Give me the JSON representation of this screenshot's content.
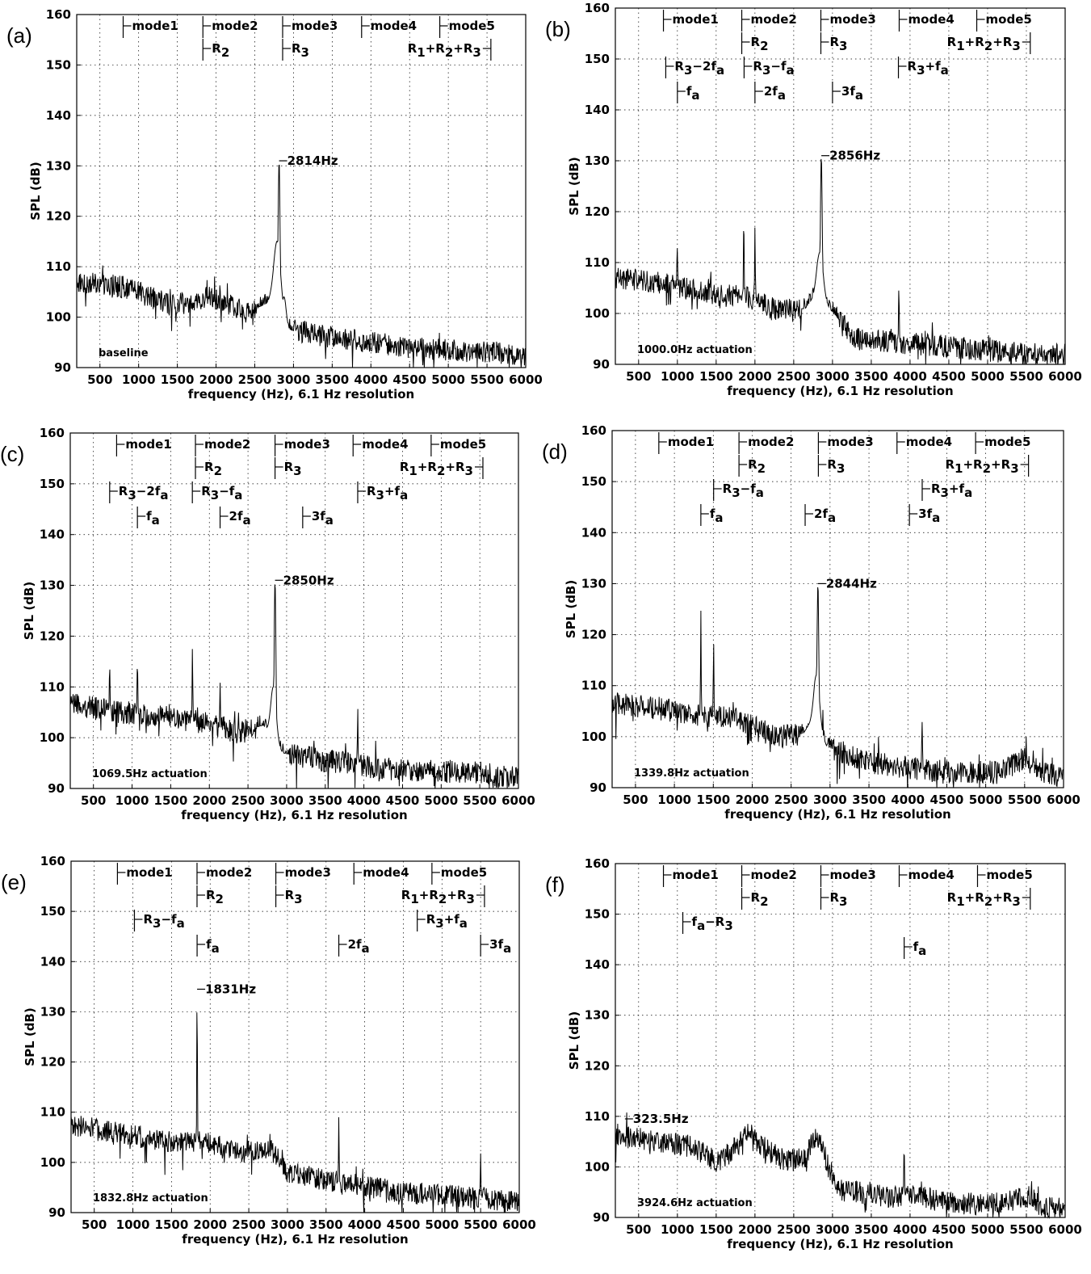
{
  "chart_data": [
    {
      "type": "line",
      "panel_label": "(a)",
      "xlabel": "frequency (Hz), 6.1 Hz resolution",
      "ylabel": "SPL (dB)",
      "xlim": [
        200,
        6000
      ],
      "ylim": [
        90,
        160
      ],
      "xticks": [
        500,
        1000,
        1500,
        2000,
        2500,
        3000,
        3500,
        4000,
        4500,
        5000,
        5500,
        6000
      ],
      "yticks": [
        90,
        100,
        110,
        120,
        130,
        140,
        150,
        160
      ],
      "grid": true,
      "condition": "baseline",
      "peak_label": "2814Hz",
      "peak": {
        "x": 2814,
        "y": 131
      },
      "annotations": [
        {
          "row": 1,
          "x": 800,
          "text": "mode1"
        },
        {
          "row": 1,
          "x": 1830,
          "text": "mode2"
        },
        {
          "row": 1,
          "x": 2860,
          "text": "mode3"
        },
        {
          "row": 1,
          "x": 3880,
          "text": "mode4"
        },
        {
          "row": 1,
          "x": 4890,
          "text": "mode5"
        },
        {
          "row": 2,
          "x": 1830,
          "text": "R2"
        },
        {
          "row": 2,
          "x": 2860,
          "text": "R3"
        },
        {
          "row": 2,
          "x": 5550,
          "text": "R1+R2+R3",
          "side": "left"
        }
      ],
      "spectrum": {
        "base": [
          [
            200,
            107
          ],
          [
            800,
            106
          ],
          [
            1400,
            102.5
          ],
          [
            1700,
            103
          ],
          [
            1900,
            104
          ],
          [
            2400,
            101
          ],
          [
            2700,
            103
          ],
          [
            2950,
            97.5
          ],
          [
            3500,
            96
          ],
          [
            4500,
            94
          ],
          [
            5000,
            93.5
          ],
          [
            5600,
            93
          ],
          [
            6000,
            92
          ]
        ],
        "noise": 2.2,
        "peaks": [
          [
            2814,
            131,
            25
          ],
          [
            2790,
            115,
            90
          ],
          [
            2880,
            104,
            50
          ]
        ]
      }
    },
    {
      "type": "line",
      "panel_label": "(b)",
      "xlabel": "frequency (Hz), 6.1 Hz resolution",
      "ylabel": "SPL (dB)",
      "xlim": [
        200,
        6000
      ],
      "ylim": [
        90,
        160
      ],
      "xticks": [
        500,
        1000,
        1500,
        2000,
        2500,
        3000,
        3500,
        4000,
        4500,
        5000,
        5500,
        6000
      ],
      "yticks": [
        90,
        100,
        110,
        120,
        130,
        140,
        150,
        160
      ],
      "grid": true,
      "condition": "1000.0Hz actuation",
      "peak_label": "2856Hz",
      "peak": {
        "x": 2856,
        "y": 131
      },
      "annotations": [
        {
          "row": 1,
          "x": 820,
          "text": "mode1"
        },
        {
          "row": 1,
          "x": 1830,
          "text": "mode2"
        },
        {
          "row": 1,
          "x": 2850,
          "text": "mode3"
        },
        {
          "row": 1,
          "x": 3860,
          "text": "mode4"
        },
        {
          "row": 1,
          "x": 4860,
          "text": "mode5"
        },
        {
          "row": 2,
          "x": 1830,
          "text": "R2"
        },
        {
          "row": 2,
          "x": 2850,
          "text": "R3"
        },
        {
          "row": 2,
          "x": 5550,
          "text": "R1+R2+R3",
          "side": "left"
        },
        {
          "row": 3,
          "x": 850,
          "text": "R3−2fa"
        },
        {
          "row": 3,
          "x": 1860,
          "text": "R3−fa"
        },
        {
          "row": 3,
          "x": 3850,
          "text": "R3+fa"
        },
        {
          "row": 4,
          "x": 1000,
          "text": "fa"
        },
        {
          "row": 4,
          "x": 2000,
          "text": "2fa"
        },
        {
          "row": 4,
          "x": 3000,
          "text": "3fa"
        }
      ],
      "spectrum": {
        "base": [
          [
            200,
            107
          ],
          [
            800,
            106
          ],
          [
            1500,
            103.5
          ],
          [
            1850,
            103.5
          ],
          [
            2300,
            100.5
          ],
          [
            2650,
            101
          ],
          [
            2800,
            104
          ],
          [
            2960,
            101
          ],
          [
            3300,
            95
          ],
          [
            4500,
            93.5
          ],
          [
            5500,
            92
          ],
          [
            6000,
            92
          ]
        ],
        "noise": 2.2,
        "peaks": [
          [
            2856,
            131,
            22
          ],
          [
            2840,
            112,
            80
          ],
          [
            1856,
            120,
            8
          ],
          [
            2000,
            117,
            8
          ],
          [
            1000,
            113,
            8
          ],
          [
            3856,
            106,
            8
          ]
        ]
      }
    },
    {
      "type": "line",
      "panel_label": "(c)",
      "xlabel": "frequency (Hz), 6.1 Hz resolution",
      "ylabel": "SPL (dB)",
      "xlim": [
        200,
        6000
      ],
      "ylim": [
        90,
        160
      ],
      "xticks": [
        500,
        1000,
        1500,
        2000,
        2500,
        3000,
        3500,
        4000,
        4500,
        5000,
        5500,
        6000
      ],
      "yticks": [
        90,
        100,
        110,
        120,
        130,
        140,
        150,
        160
      ],
      "grid": true,
      "condition": "1069.5Hz actuation",
      "peak_label": "2850Hz",
      "peak": {
        "x": 2850,
        "y": 131
      },
      "annotations": [
        {
          "row": 1,
          "x": 800,
          "text": "mode1"
        },
        {
          "row": 1,
          "x": 1820,
          "text": "mode2"
        },
        {
          "row": 1,
          "x": 2850,
          "text": "mode3"
        },
        {
          "row": 1,
          "x": 3860,
          "text": "mode4"
        },
        {
          "row": 1,
          "x": 4870,
          "text": "mode5"
        },
        {
          "row": 2,
          "x": 1820,
          "text": "R2"
        },
        {
          "row": 2,
          "x": 2850,
          "text": "R3"
        },
        {
          "row": 2,
          "x": 5540,
          "text": "R1+R2+R3",
          "side": "left"
        },
        {
          "row": 3,
          "x": 710,
          "text": "R3−2fa"
        },
        {
          "row": 3,
          "x": 1780,
          "text": "R3−fa"
        },
        {
          "row": 3,
          "x": 3920,
          "text": "R3+fa"
        },
        {
          "row": 4,
          "x": 1069,
          "text": "fa"
        },
        {
          "row": 4,
          "x": 2139,
          "text": "2fa"
        },
        {
          "row": 4,
          "x": 3208,
          "text": "3fa"
        }
      ],
      "spectrum": {
        "base": [
          [
            200,
            106.5
          ],
          [
            900,
            105
          ],
          [
            1500,
            104
          ],
          [
            1900,
            103
          ],
          [
            2400,
            101
          ],
          [
            2700,
            102.5
          ],
          [
            2950,
            97
          ],
          [
            3500,
            95.5
          ],
          [
            4500,
            93.5
          ],
          [
            5500,
            93
          ],
          [
            6000,
            92
          ]
        ],
        "noise": 2.3,
        "peaks": [
          [
            2850,
            131,
            22
          ],
          [
            2830,
            110,
            70
          ],
          [
            1069,
            116,
            8
          ],
          [
            710,
            115,
            8
          ],
          [
            1781,
            118,
            8
          ],
          [
            2139,
            111,
            8
          ],
          [
            3920,
            106,
            8
          ]
        ]
      }
    },
    {
      "type": "line",
      "panel_label": "(d)",
      "xlabel": "frequency (Hz), 6.1 Hz resolution",
      "ylabel": "SPL (dB)",
      "xlim": [
        200,
        6000
      ],
      "ylim": [
        90,
        160
      ],
      "xticks": [
        500,
        1000,
        1500,
        2000,
        2500,
        3000,
        3500,
        4000,
        4500,
        5000,
        5500,
        6000
      ],
      "yticks": [
        90,
        100,
        110,
        120,
        130,
        140,
        150,
        160
      ],
      "grid": true,
      "condition": "1339.8Hz actuation",
      "peak_label": "2844Hz",
      "peak": {
        "x": 2844,
        "y": 130
      },
      "annotations": [
        {
          "row": 1,
          "x": 800,
          "text": "mode1"
        },
        {
          "row": 1,
          "x": 1830,
          "text": "mode2"
        },
        {
          "row": 1,
          "x": 2850,
          "text": "mode3"
        },
        {
          "row": 1,
          "x": 3860,
          "text": "mode4"
        },
        {
          "row": 1,
          "x": 4870,
          "text": "mode5"
        },
        {
          "row": 2,
          "x": 1830,
          "text": "R2"
        },
        {
          "row": 2,
          "x": 2850,
          "text": "R3"
        },
        {
          "row": 2,
          "x": 5550,
          "text": "R1+R2+R3",
          "side": "left"
        },
        {
          "row": 3,
          "x": 1504,
          "text": "R3−fa"
        },
        {
          "row": 3,
          "x": 4184,
          "text": "R3+fa"
        },
        {
          "row": 4,
          "x": 1340,
          "text": "fa"
        },
        {
          "row": 4,
          "x": 2680,
          "text": "2fa"
        },
        {
          "row": 4,
          "x": 4020,
          "text": "3fa"
        }
      ],
      "spectrum": {
        "base": [
          [
            200,
            106.5
          ],
          [
            800,
            105.5
          ],
          [
            1400,
            104
          ],
          [
            1800,
            103.5
          ],
          [
            2300,
            100
          ],
          [
            2650,
            100.5
          ],
          [
            2800,
            104
          ],
          [
            2960,
            98
          ],
          [
            3500,
            95
          ],
          [
            4500,
            93
          ],
          [
            5200,
            93
          ],
          [
            5500,
            96
          ],
          [
            5700,
            93
          ],
          [
            6000,
            92
          ]
        ],
        "noise": 2.3,
        "peaks": [
          [
            2844,
            130,
            22
          ],
          [
            2830,
            112,
            70
          ],
          [
            1340,
            125,
            8
          ],
          [
            1504,
            119,
            8
          ],
          [
            4184,
            103,
            8
          ]
        ]
      }
    },
    {
      "type": "line",
      "panel_label": "(e)",
      "xlabel": "frequency (Hz), 6.1 Hz resolution",
      "ylabel": "SPL (dB)",
      "xlim": [
        200,
        6000
      ],
      "ylim": [
        90,
        160
      ],
      "xticks": [
        500,
        1000,
        1500,
        2000,
        2500,
        3000,
        3500,
        4000,
        4500,
        5000,
        5500,
        6000
      ],
      "yticks": [
        90,
        100,
        110,
        120,
        130,
        140,
        150,
        160
      ],
      "grid": true,
      "condition": "1832.8Hz actuation",
      "peak_label": "1831Hz",
      "peak": {
        "x": 1831,
        "y": 134.5
      },
      "annotations": [
        {
          "row": 1,
          "x": 800,
          "text": "mode1"
        },
        {
          "row": 1,
          "x": 1830,
          "text": "mode2"
        },
        {
          "row": 1,
          "x": 2850,
          "text": "mode3"
        },
        {
          "row": 1,
          "x": 3860,
          "text": "mode4"
        },
        {
          "row": 1,
          "x": 4870,
          "text": "mode5"
        },
        {
          "row": 2,
          "x": 1830,
          "text": "R2"
        },
        {
          "row": 2,
          "x": 2850,
          "text": "R3"
        },
        {
          "row": 2,
          "x": 5550,
          "text": "R1+R2+R3",
          "side": "left"
        },
        {
          "row": 3,
          "x": 1020,
          "text": "R3−fa"
        },
        {
          "row": 3,
          "x": 4680,
          "text": "R3+fa"
        },
        {
          "row": 4,
          "x": 1831,
          "text": "fa"
        },
        {
          "row": 4,
          "x": 3665,
          "text": "2fa"
        },
        {
          "row": 4,
          "x": 5500,
          "text": "3fa"
        }
      ],
      "spectrum": {
        "base": [
          [
            200,
            107.5
          ],
          [
            800,
            106
          ],
          [
            1500,
            104
          ],
          [
            1900,
            104
          ],
          [
            2400,
            102
          ],
          [
            2800,
            103
          ],
          [
            3000,
            98
          ],
          [
            3500,
            96.5
          ],
          [
            4500,
            94
          ],
          [
            5500,
            93
          ],
          [
            6000,
            92
          ]
        ],
        "noise": 2.2,
        "peaks": [
          [
            1831,
            134.5,
            8
          ],
          [
            3665,
            109,
            8
          ],
          [
            5500,
            102,
            8
          ]
        ]
      }
    },
    {
      "type": "line",
      "panel_label": "(f)",
      "xlabel": "frequency (Hz), 6.1 Hz resolution",
      "ylabel": "SPL (dB)",
      "xlim": [
        200,
        6000
      ],
      "ylim": [
        90,
        160
      ],
      "xticks": [
        500,
        1000,
        1500,
        2000,
        2500,
        3000,
        3500,
        4000,
        4500,
        5000,
        5500,
        6000
      ],
      "yticks": [
        90,
        100,
        110,
        120,
        130,
        140,
        150,
        160
      ],
      "grid": true,
      "condition": "3924.6Hz actuation",
      "peak_label": "323.5Hz",
      "peak": {
        "x": 323.5,
        "y": 109.5
      },
      "annotations": [
        {
          "row": 1,
          "x": 820,
          "text": "mode1"
        },
        {
          "row": 1,
          "x": 1830,
          "text": "mode2"
        },
        {
          "row": 1,
          "x": 2850,
          "text": "mode3"
        },
        {
          "row": 1,
          "x": 3860,
          "text": "mode4"
        },
        {
          "row": 1,
          "x": 4870,
          "text": "mode5"
        },
        {
          "row": 2,
          "x": 1830,
          "text": "R2"
        },
        {
          "row": 2,
          "x": 2850,
          "text": "R3"
        },
        {
          "row": 2,
          "x": 5550,
          "text": "R1+R2+R3",
          "side": "left"
        },
        {
          "row": 3,
          "x": 1070,
          "text": "fa−R3"
        },
        {
          "row": 4,
          "x": 3924,
          "text": "fa"
        }
      ],
      "spectrum": {
        "base": [
          [
            200,
            106.5
          ],
          [
            800,
            105
          ],
          [
            1200,
            104
          ],
          [
            1500,
            101
          ],
          [
            1700,
            103
          ],
          [
            1900,
            106.5
          ],
          [
            2100,
            104
          ],
          [
            2400,
            101
          ],
          [
            2650,
            102
          ],
          [
            2800,
            106.5
          ],
          [
            2950,
            100
          ],
          [
            3100,
            95.5
          ],
          [
            3700,
            94
          ],
          [
            4000,
            94.5
          ],
          [
            4500,
            93
          ],
          [
            5000,
            92.5
          ],
          [
            5500,
            94
          ],
          [
            5700,
            92
          ],
          [
            6000,
            91.5
          ]
        ],
        "noise": 2.2,
        "peaks": [
          [
            3924,
            105,
            8
          ]
        ]
      }
    }
  ]
}
